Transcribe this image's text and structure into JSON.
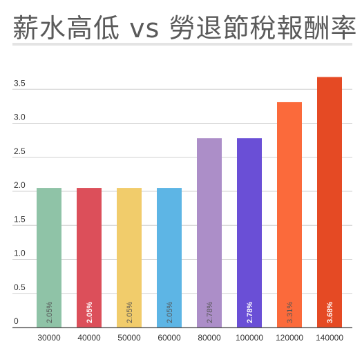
{
  "chart_data": {
    "type": "bar",
    "title": "薪水高低 vs 勞退節稅報酬率",
    "xlabel": "",
    "ylabel": "",
    "ylim": [
      0,
      3.75
    ],
    "yticks": [
      0,
      0.5,
      1.0,
      1.5,
      2.0,
      2.5,
      3.0,
      3.5
    ],
    "ytick_labels": [
      "0",
      "0.5",
      "1.0",
      "1.5",
      "2.0",
      "2.5",
      "3.0",
      "3.5"
    ],
    "grid": true,
    "legend": "none",
    "categories": [
      "30000",
      "40000",
      "50000",
      "60000",
      "80000",
      "100000",
      "120000",
      "140000"
    ],
    "values": [
      2.05,
      2.05,
      2.05,
      2.05,
      2.78,
      2.78,
      3.31,
      3.68
    ],
    "data_labels": [
      "2.05%",
      "2.05%",
      "2.05%",
      "2.05%",
      "2.78%",
      "2.78%",
      "3.31%",
      "3.68%"
    ],
    "colors": [
      "#8fc3a7",
      "#dc4f5a",
      "#f1cc6b",
      "#5db5e5",
      "#ac8ec8",
      "#6a4fd6",
      "#fb6a3b",
      "#e54a24"
    ],
    "label_colors": [
      "#555555",
      "#ffffff",
      "#555555",
      "#555555",
      "#555555",
      "#ffffff",
      "#555555",
      "#ffffff"
    ],
    "label_bold": [
      false,
      true,
      false,
      false,
      false,
      true,
      false,
      true
    ]
  }
}
